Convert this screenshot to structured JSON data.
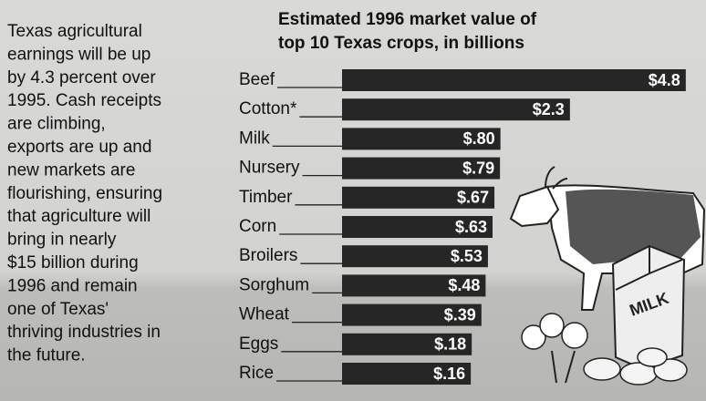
{
  "chart_data": {
    "type": "bar",
    "orientation": "horizontal",
    "title_lines": [
      "Estimated 1996 market value of",
      "top 10 Texas crops, in billions"
    ],
    "text_lines": [
      "Texas agricultural",
      "earnings will be up",
      "by 4.3 percent over",
      "1995. Cash receipts",
      "are climbing,",
      "exports are up and",
      "new markets are",
      "flourishing, ensuring",
      "that agriculture will",
      "bring in nearly",
      "$15 billion during",
      "1996 and remain",
      "one of Texas'",
      "thriving industries in",
      "the future."
    ],
    "categories": [
      "Beef",
      "Cotton*",
      "Milk",
      "Nursery",
      "Timber",
      "Corn",
      "Broilers",
      "Sorghum",
      "Wheat",
      "Eggs",
      "Rice"
    ],
    "values": [
      4.8,
      2.3,
      0.8,
      0.79,
      0.67,
      0.63,
      0.53,
      0.48,
      0.39,
      0.18,
      0.16
    ],
    "value_labels": [
      "$4.8",
      "$2.3",
      "$.80",
      "$.79",
      "$.67",
      "$.63",
      "$.53",
      "$.48",
      "$.39",
      "$.18",
      "$.16"
    ],
    "color": "#262626",
    "illustration_label": "MILK"
  }
}
